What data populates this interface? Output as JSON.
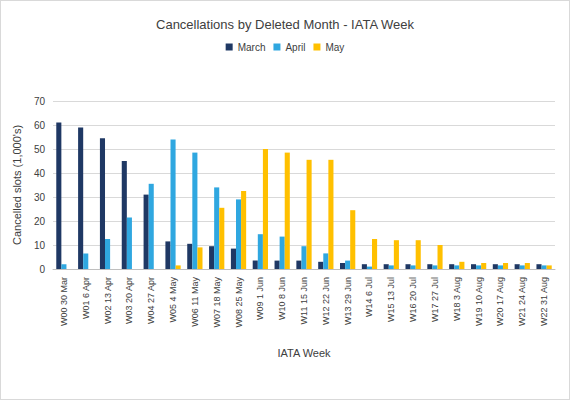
{
  "chart_data": {
    "type": "bar",
    "title": "Cancellations by Deleted Month - IATA Week",
    "x_label": "IATA Week",
    "y_label": "Cancelled slots (1,000's)",
    "categories": [
      "W00 30 Mar",
      "W01 6 Apr",
      "W02 13 Apr",
      "W03 20 Apr",
      "W04 27 Apr",
      "W05 4 May",
      "W06 11 May",
      "W07 18 May",
      "W08 25 May",
      "W09 1 Jun",
      "W10 8 Jun",
      "W11 15 Jun",
      "W12 22 Jun",
      "W13 29 Jun",
      "W14 6 Jul",
      "W15 13 Jul",
      "W16 20 Jul",
      "W17 27 Jul",
      "W18 3 Aug",
      "W19 10 Aug",
      "W20 17 Aug",
      "W21 24 Aug",
      "W22 31 Aug"
    ],
    "series": [
      {
        "name": "March",
        "color": "#1f3864",
        "values": [
          61,
          59,
          54.5,
          45,
          31,
          11.5,
          10.5,
          9.5,
          8.5,
          3.5,
          3.5,
          3.5,
          3,
          2.5,
          2,
          2,
          2,
          2,
          2,
          2,
          2,
          2,
          2
        ]
      },
      {
        "name": "April",
        "color": "#2fa7e0",
        "values": [
          2,
          6.5,
          12.5,
          21.5,
          35.5,
          54,
          48.5,
          34,
          29,
          14.5,
          13.5,
          9.5,
          6.5,
          3.5,
          1,
          1.5,
          1.5,
          1.5,
          1.5,
          1.5,
          1.5,
          1.5,
          1.5
        ]
      },
      {
        "name": "May",
        "color": "#ffc000",
        "values": [
          null,
          null,
          null,
          null,
          null,
          1.5,
          9,
          25.5,
          32.5,
          50,
          48.5,
          45.5,
          45.5,
          24.5,
          12.5,
          12,
          12,
          10,
          3,
          2.5,
          2.5,
          2.5,
          1.5
        ]
      }
    ],
    "ylim": [
      0,
      70
    ],
    "yticks": [
      0,
      10,
      20,
      30,
      40,
      50,
      60,
      70
    ],
    "grid": true,
    "legend": "top"
  }
}
